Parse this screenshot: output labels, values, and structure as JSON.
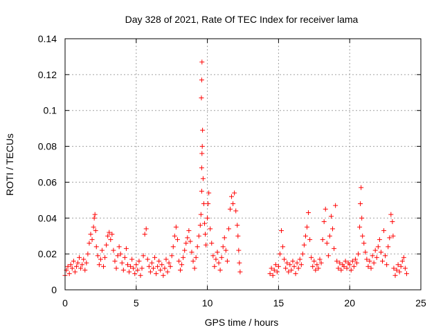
{
  "chart_data": {
    "type": "scatter",
    "title": "Day 328 of 2021, Rate Of TEC Index for receiver lama",
    "xlabel": "GPS time / hours",
    "ylabel": "ROTI / TECUs",
    "xlim": [
      0,
      25
    ],
    "ylim": [
      0,
      0.14
    ],
    "xticks": [
      0,
      5,
      10,
      15,
      20,
      25
    ],
    "xtick_labels": [
      "0",
      "5",
      "10",
      "15",
      "20",
      "25"
    ],
    "yticks": [
      0,
      0.02,
      0.04,
      0.06,
      0.08,
      0.1,
      0.12,
      0.14
    ],
    "ytick_labels": [
      "0",
      "0.02",
      "0.04",
      "0.06",
      "0.08",
      "0.1",
      "0.12",
      "0.14"
    ],
    "grid": true,
    "marker": "plus",
    "series": [
      {
        "color": "#ff0000",
        "points": [
          [
            0.0,
            0.008
          ],
          [
            0.1,
            0.011
          ],
          [
            0.2,
            0.013
          ],
          [
            0.3,
            0.009
          ],
          [
            0.4,
            0.014
          ],
          [
            0.5,
            0.012
          ],
          [
            0.6,
            0.016
          ],
          [
            0.7,
            0.01
          ],
          [
            0.8,
            0.013
          ],
          [
            0.9,
            0.015
          ],
          [
            1.0,
            0.018
          ],
          [
            1.1,
            0.012
          ],
          [
            1.2,
            0.014
          ],
          [
            1.3,
            0.017
          ],
          [
            1.4,
            0.011
          ],
          [
            1.5,
            0.015
          ],
          [
            1.6,
            0.02
          ],
          [
            1.7,
            0.026
          ],
          [
            1.8,
            0.031
          ],
          [
            1.9,
            0.028
          ],
          [
            2.0,
            0.035
          ],
          [
            2.05,
            0.04
          ],
          [
            2.1,
            0.042
          ],
          [
            2.15,
            0.033
          ],
          [
            2.2,
            0.024
          ],
          [
            2.3,
            0.019
          ],
          [
            2.4,
            0.014
          ],
          [
            2.5,
            0.017
          ],
          [
            2.6,
            0.022
          ],
          [
            2.7,
            0.013
          ],
          [
            2.8,
            0.018
          ],
          [
            2.9,
            0.025
          ],
          [
            3.0,
            0.03
          ],
          [
            3.1,
            0.032
          ],
          [
            3.2,
            0.028
          ],
          [
            3.3,
            0.031
          ],
          [
            3.4,
            0.022
          ],
          [
            3.5,
            0.016
          ],
          [
            3.6,
            0.012
          ],
          [
            3.7,
            0.019
          ],
          [
            3.8,
            0.024
          ],
          [
            3.9,
            0.02
          ],
          [
            4.0,
            0.015
          ],
          [
            4.1,
            0.011
          ],
          [
            4.2,
            0.018
          ],
          [
            4.3,
            0.023
          ],
          [
            4.4,
            0.014
          ],
          [
            4.5,
            0.01
          ],
          [
            4.6,
            0.013
          ],
          [
            4.7,
            0.017
          ],
          [
            4.8,
            0.012
          ],
          [
            4.9,
            0.009
          ],
          [
            5.0,
            0.014
          ],
          [
            5.1,
            0.011
          ],
          [
            5.2,
            0.016
          ],
          [
            5.3,
            0.008
          ],
          [
            5.4,
            0.012
          ],
          [
            5.5,
            0.019
          ],
          [
            5.6,
            0.031
          ],
          [
            5.7,
            0.034
          ],
          [
            5.8,
            0.017
          ],
          [
            5.9,
            0.013
          ],
          [
            6.0,
            0.01
          ],
          [
            6.1,
            0.015
          ],
          [
            6.2,
            0.012
          ],
          [
            6.3,
            0.018
          ],
          [
            6.4,
            0.009
          ],
          [
            6.5,
            0.013
          ],
          [
            6.6,
            0.016
          ],
          [
            6.7,
            0.011
          ],
          [
            6.8,
            0.014
          ],
          [
            6.9,
            0.008
          ],
          [
            7.0,
            0.012
          ],
          [
            7.1,
            0.017
          ],
          [
            7.2,
            0.01
          ],
          [
            7.3,
            0.015
          ],
          [
            7.4,
            0.013
          ],
          [
            7.5,
            0.019
          ],
          [
            7.6,
            0.024
          ],
          [
            7.7,
            0.03
          ],
          [
            7.8,
            0.035
          ],
          [
            7.9,
            0.028
          ],
          [
            8.0,
            0.016
          ],
          [
            8.1,
            0.011
          ],
          [
            8.2,
            0.014
          ],
          [
            8.3,
            0.018
          ],
          [
            8.4,
            0.022
          ],
          [
            8.5,
            0.026
          ],
          [
            8.6,
            0.029
          ],
          [
            8.7,
            0.033
          ],
          [
            8.8,
            0.027
          ],
          [
            8.9,
            0.021
          ],
          [
            9.0,
            0.016
          ],
          [
            9.1,
            0.012
          ],
          [
            9.2,
            0.018
          ],
          [
            9.3,
            0.024
          ],
          [
            9.4,
            0.03
          ],
          [
            9.5,
            0.036
          ],
          [
            9.55,
            0.042
          ],
          [
            9.6,
            0.055
          ],
          [
            9.6,
            0.068
          ],
          [
            9.62,
            0.076
          ],
          [
            9.64,
            0.08
          ],
          [
            9.66,
            0.089
          ],
          [
            9.58,
            0.107
          ],
          [
            9.6,
            0.117
          ],
          [
            9.62,
            0.127
          ],
          [
            9.7,
            0.062
          ],
          [
            9.75,
            0.048
          ],
          [
            9.8,
            0.037
          ],
          [
            9.85,
            0.031
          ],
          [
            9.9,
            0.025
          ],
          [
            10.0,
            0.04
          ],
          [
            10.05,
            0.048
          ],
          [
            10.1,
            0.054
          ],
          [
            10.2,
            0.034
          ],
          [
            10.3,
            0.026
          ],
          [
            10.4,
            0.019
          ],
          [
            10.5,
            0.013
          ],
          [
            10.6,
            0.017
          ],
          [
            10.7,
            0.021
          ],
          [
            10.8,
            0.015
          ],
          [
            10.9,
            0.011
          ],
          [
            11.0,
            0.018
          ],
          [
            11.1,
            0.024
          ],
          [
            11.2,
            0.029
          ],
          [
            11.3,
            0.022
          ],
          [
            11.4,
            0.016
          ],
          [
            11.5,
            0.034
          ],
          [
            11.6,
            0.045
          ],
          [
            11.7,
            0.052
          ],
          [
            11.8,
            0.048
          ],
          [
            11.9,
            0.054
          ],
          [
            12.0,
            0.044
          ],
          [
            12.1,
            0.036
          ],
          [
            12.15,
            0.03
          ],
          [
            12.2,
            0.022
          ],
          [
            12.25,
            0.015
          ],
          [
            12.3,
            0.01
          ],
          [
            14.4,
            0.009
          ],
          [
            14.5,
            0.012
          ],
          [
            14.6,
            0.008
          ],
          [
            14.7,
            0.011
          ],
          [
            14.8,
            0.014
          ],
          [
            14.9,
            0.01
          ],
          [
            15.0,
            0.013
          ],
          [
            15.1,
            0.02
          ],
          [
            15.2,
            0.033
          ],
          [
            15.3,
            0.024
          ],
          [
            15.4,
            0.017
          ],
          [
            15.5,
            0.012
          ],
          [
            15.6,
            0.015
          ],
          [
            15.7,
            0.01
          ],
          [
            15.8,
            0.014
          ],
          [
            15.9,
            0.011
          ],
          [
            16.0,
            0.016
          ],
          [
            16.1,
            0.013
          ],
          [
            16.2,
            0.009
          ],
          [
            16.3,
            0.015
          ],
          [
            16.4,
            0.012
          ],
          [
            16.5,
            0.017
          ],
          [
            16.6,
            0.014
          ],
          [
            16.7,
            0.02
          ],
          [
            16.8,
            0.025
          ],
          [
            16.9,
            0.03
          ],
          [
            17.0,
            0.035
          ],
          [
            17.1,
            0.043
          ],
          [
            17.2,
            0.028
          ],
          [
            17.3,
            0.018
          ],
          [
            17.4,
            0.013
          ],
          [
            17.5,
            0.016
          ],
          [
            17.6,
            0.011
          ],
          [
            17.7,
            0.014
          ],
          [
            17.8,
            0.012
          ],
          [
            17.9,
            0.017
          ],
          [
            18.0,
            0.015
          ],
          [
            18.1,
            0.028
          ],
          [
            18.2,
            0.038
          ],
          [
            18.3,
            0.045
          ],
          [
            18.4,
            0.026
          ],
          [
            18.5,
            0.019
          ],
          [
            18.6,
            0.03
          ],
          [
            18.7,
            0.041
          ],
          [
            18.8,
            0.034
          ],
          [
            18.9,
            0.023
          ],
          [
            19.0,
            0.047
          ],
          [
            19.1,
            0.016
          ],
          [
            19.2,
            0.012
          ],
          [
            19.3,
            0.015
          ],
          [
            19.4,
            0.011
          ],
          [
            19.5,
            0.014
          ],
          [
            19.6,
            0.013
          ],
          [
            19.7,
            0.016
          ],
          [
            19.8,
            0.012
          ],
          [
            19.9,
            0.015
          ],
          [
            20.0,
            0.014
          ],
          [
            20.1,
            0.011
          ],
          [
            20.2,
            0.016
          ],
          [
            20.3,
            0.013
          ],
          [
            20.4,
            0.017
          ],
          [
            20.5,
            0.015
          ],
          [
            20.6,
            0.02
          ],
          [
            20.7,
            0.035
          ],
          [
            20.75,
            0.048
          ],
          [
            20.8,
            0.057
          ],
          [
            20.85,
            0.04
          ],
          [
            20.9,
            0.03
          ],
          [
            21.0,
            0.026
          ],
          [
            21.1,
            0.021
          ],
          [
            21.2,
            0.017
          ],
          [
            21.3,
            0.013
          ],
          [
            21.4,
            0.016
          ],
          [
            21.5,
            0.012
          ],
          [
            21.6,
            0.019
          ],
          [
            21.7,
            0.015
          ],
          [
            21.8,
            0.022
          ],
          [
            21.9,
            0.018
          ],
          [
            22.0,
            0.024
          ],
          [
            22.1,
            0.028
          ],
          [
            22.2,
            0.021
          ],
          [
            22.3,
            0.016
          ],
          [
            22.4,
            0.033
          ],
          [
            22.5,
            0.019
          ],
          [
            22.6,
            0.014
          ],
          [
            22.7,
            0.024
          ],
          [
            22.8,
            0.029
          ],
          [
            22.9,
            0.042
          ],
          [
            23.0,
            0.038
          ],
          [
            23.05,
            0.03
          ],
          [
            23.1,
            0.012
          ],
          [
            23.2,
            0.008
          ],
          [
            23.3,
            0.011
          ],
          [
            23.4,
            0.014
          ],
          [
            23.5,
            0.01
          ],
          [
            23.6,
            0.013
          ],
          [
            23.7,
            0.016
          ],
          [
            23.8,
            0.018
          ],
          [
            23.9,
            0.012
          ],
          [
            24.0,
            0.009
          ]
        ]
      }
    ]
  }
}
